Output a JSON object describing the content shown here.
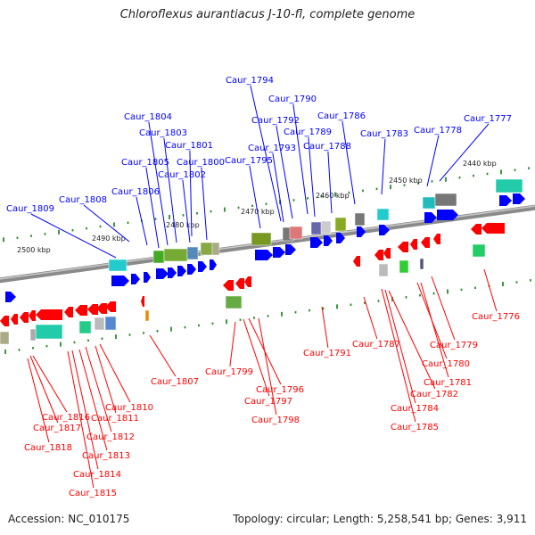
{
  "title": "Chloroflexus aurantiacus J-10-fl, complete genome",
  "colors": {
    "forward": "#0000ff",
    "reverse": "#ff0000",
    "backbone": "#777777",
    "tick": "#2a8a2a"
  },
  "scale_labels": [
    "2500 kbp",
    "2490 kbp",
    "2480 kbp",
    "2470 kbp",
    "2460 kbp",
    "2450 kbp",
    "2440 kbp"
  ],
  "genes_top": [
    "Caur_1809",
    "Caur_1808",
    "Caur_1806",
    "Caur_1805",
    "Caur_1804",
    "Caur_1803",
    "Caur_1802",
    "Caur_1801",
    "Caur_1800",
    "Caur_1795",
    "Caur_1794",
    "Caur_1793",
    "Caur_1792",
    "Caur_1790",
    "Caur_1789",
    "Caur_1788",
    "Caur_1786",
    "Caur_1783",
    "Caur_1778",
    "Caur_1777"
  ],
  "genes_bottom": [
    "Caur_1807",
    "Caur_1799",
    "Caur_1796",
    "Caur_1797",
    "Caur_1798",
    "Caur_1791",
    "Caur_1787",
    "Caur_1784",
    "Caur_1785",
    "Caur_1782",
    "Caur_1781",
    "Caur_1780",
    "Caur_1779",
    "Caur_1776",
    "Caur_1810",
    "Caur_1811",
    "Caur_1812",
    "Caur_1813",
    "Caur_1814",
    "Caur_1815",
    "Caur_1816",
    "Caur_1817",
    "Caur_1818"
  ],
  "footer": {
    "accession": "Accession: NC_010175",
    "topology": "Topology: circular; Length: 5,258,541 bp; Genes: 3,911"
  }
}
